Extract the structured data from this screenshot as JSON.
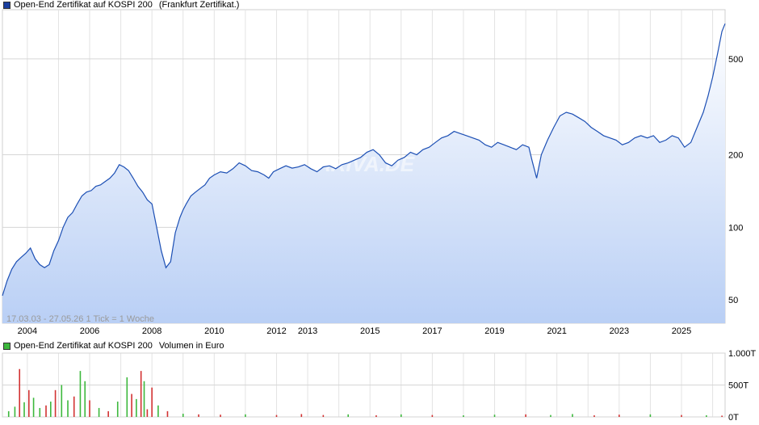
{
  "chart_data": [
    {
      "type": "area",
      "legend": {
        "series_name": "Open-End Zertifikat auf KOSPI 200",
        "exchange": "(Frankfurt Zertifikat.)"
      },
      "scale": "log",
      "ylim": [
        40,
        800
      ],
      "yticks": [
        {
          "value": 50,
          "label": "50"
        },
        {
          "value": 100,
          "label": "100"
        },
        {
          "value": 200,
          "label": "200"
        },
        {
          "value": 500,
          "label": "500"
        }
      ],
      "xticks": [
        "2004",
        "2006",
        "2008",
        "2010",
        "2012",
        "2013",
        "2015",
        "2017",
        "2019",
        "2021",
        "2023",
        "2025"
      ],
      "xlim": [
        2003.2,
        2026.4
      ],
      "range_note": "17.03.03 - 27.05.26   1 Tick = 1 Woche",
      "watermark": "ARIVA.DE",
      "grid": true,
      "color": "#1c4fb4",
      "series": [
        {
          "x": [
            2003.2,
            2003.35,
            2003.5,
            2003.65,
            2003.8,
            2003.95,
            2004.1,
            2004.25,
            2004.4,
            2004.55,
            2004.7,
            2004.85,
            2005.0,
            2005.15,
            2005.3,
            2005.45,
            2005.6,
            2005.75,
            2005.9,
            2006.05,
            2006.2,
            2006.35,
            2006.5,
            2006.65,
            2006.8,
            2006.95,
            2007.1,
            2007.25,
            2007.4,
            2007.55,
            2007.7,
            2007.85,
            2008.0,
            2008.15,
            2008.3,
            2008.45,
            2008.6,
            2008.75,
            2008.9,
            2009.0,
            2009.1,
            2009.25,
            2009.4,
            2009.55,
            2009.7,
            2009.85,
            2010.0,
            2010.2,
            2010.4,
            2010.6,
            2010.8,
            2011.0,
            2011.2,
            2011.4,
            2011.6,
            2011.75,
            2011.9,
            2012.1,
            2012.3,
            2012.5,
            2012.7,
            2012.9,
            2013.1,
            2013.3,
            2013.5,
            2013.7,
            2013.9,
            2014.1,
            2014.3,
            2014.5,
            2014.7,
            2014.9,
            2015.1,
            2015.3,
            2015.5,
            2015.7,
            2015.9,
            2016.1,
            2016.3,
            2016.5,
            2016.7,
            2016.9,
            2017.1,
            2017.3,
            2017.5,
            2017.7,
            2017.9,
            2018.1,
            2018.3,
            2018.5,
            2018.7,
            2018.9,
            2019.1,
            2019.3,
            2019.5,
            2019.7,
            2019.9,
            2020.1,
            2020.2,
            2020.35,
            2020.5,
            2020.7,
            2020.9,
            2021.1,
            2021.3,
            2021.5,
            2021.7,
            2021.9,
            2022.1,
            2022.3,
            2022.5,
            2022.7,
            2022.9,
            2023.1,
            2023.3,
            2023.5,
            2023.7,
            2023.9,
            2024.1,
            2024.3,
            2024.5,
            2024.7,
            2024.9,
            2025.1,
            2025.3,
            2025.5,
            2025.7,
            2025.85,
            2026.0,
            2026.15,
            2026.3,
            2026.4
          ],
          "y": [
            52,
            60,
            67,
            72,
            75,
            78,
            82,
            74,
            70,
            68,
            70,
            80,
            88,
            100,
            110,
            115,
            125,
            135,
            140,
            142,
            148,
            150,
            155,
            160,
            168,
            182,
            178,
            172,
            160,
            148,
            140,
            130,
            125,
            100,
            80,
            68,
            72,
            95,
            110,
            118,
            125,
            135,
            140,
            145,
            150,
            160,
            165,
            170,
            168,
            175,
            185,
            180,
            172,
            170,
            165,
            160,
            170,
            175,
            180,
            176,
            178,
            182,
            175,
            170,
            178,
            180,
            175,
            182,
            185,
            190,
            195,
            205,
            210,
            200,
            185,
            180,
            190,
            195,
            205,
            200,
            210,
            215,
            225,
            235,
            240,
            250,
            245,
            240,
            235,
            230,
            220,
            215,
            225,
            220,
            215,
            210,
            220,
            215,
            190,
            160,
            200,
            230,
            260,
            290,
            300,
            295,
            285,
            275,
            260,
            250,
            240,
            235,
            230,
            220,
            225,
            235,
            240,
            235,
            240,
            225,
            230,
            240,
            235,
            215,
            225,
            260,
            300,
            350,
            420,
            520,
            650,
            700
          ]
        }
      ]
    },
    {
      "type": "bar",
      "legend": {
        "series_name": "Open-End Zertifikat auf KOSPI 200",
        "volume_label": "Volumen in Euro"
      },
      "ylim": [
        0,
        1000
      ],
      "yticks": [
        {
          "value": 0,
          "label": "0T"
        },
        {
          "value": 500,
          "label": "500T"
        },
        {
          "value": 1000,
          "label": "1.000T"
        }
      ],
      "colors": {
        "up": "#3cb83c",
        "down": "#d23232"
      },
      "series": [
        {
          "name": "volume",
          "x": [
            2003.4,
            2003.6,
            2003.75,
            2003.9,
            2004.05,
            2004.2,
            2004.4,
            2004.6,
            2004.75,
            2004.9,
            2005.1,
            2005.3,
            2005.5,
            2005.7,
            2005.85,
            2006.0,
            2006.3,
            2006.6,
            2006.9,
            2007.2,
            2007.35,
            2007.5,
            2007.65,
            2007.75,
            2007.85,
            2008.0,
            2008.2,
            2008.5,
            2009.0,
            2009.5,
            2010.2,
            2011.0,
            2012.0,
            2012.8,
            2013.5,
            2014.3,
            2015.2,
            2016.0,
            2017.0,
            2018.0,
            2019.0,
            2020.0,
            2020.8,
            2021.5,
            2022.2,
            2023.0,
            2024.0,
            2025.0,
            2025.8,
            2026.3
          ],
          "values": [
            90,
            160,
            750,
            230,
            420,
            300,
            140,
            180,
            240,
            420,
            500,
            260,
            320,
            720,
            560,
            260,
            140,
            90,
            240,
            620,
            360,
            280,
            720,
            560,
            120,
            460,
            180,
            90,
            50,
            40,
            35,
            40,
            30,
            45,
            30,
            40,
            25,
            40,
            30,
            25,
            35,
            40,
            30,
            45,
            25,
            35,
            40,
            30,
            25,
            20
          ],
          "direction": [
            "up",
            "up",
            "down",
            "up",
            "down",
            "up",
            "up",
            "down",
            "up",
            "down",
            "up",
            "up",
            "down",
            "up",
            "up",
            "down",
            "up",
            "down",
            "up",
            "up",
            "down",
            "up",
            "down",
            "up",
            "down",
            "down",
            "up",
            "down",
            "up",
            "down",
            "down",
            "up",
            "down",
            "down",
            "down",
            "up",
            "down",
            "up",
            "down",
            "up",
            "up",
            "down",
            "up",
            "up",
            "down",
            "down",
            "up",
            "down",
            "up",
            "down"
          ]
        }
      ]
    }
  ]
}
